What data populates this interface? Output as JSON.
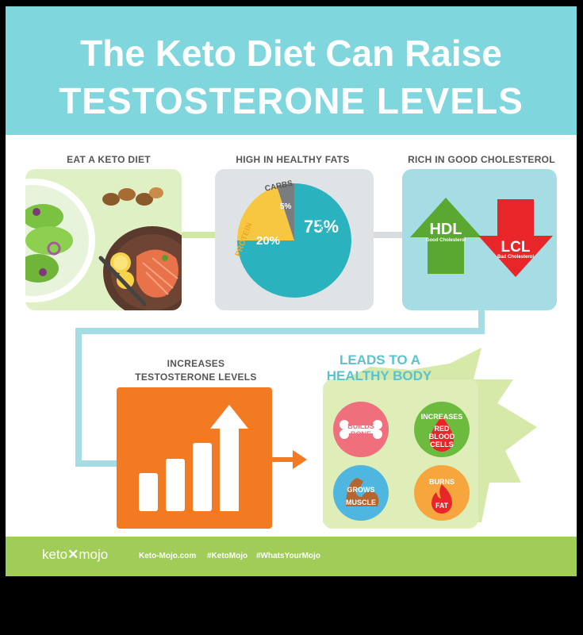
{
  "header": {
    "line1": "The Keto Diet Can Raise",
    "line2": "TESTOSTERONE LEVELS"
  },
  "sections": {
    "eat": "EAT A KETO DIET",
    "fats": "HIGH IN HEALTHY FATS",
    "cholesterol": "RICH IN GOOD CHOLESTEROL",
    "increases_line1": "INCREASES",
    "increases_line2": "TESTOSTERONE LEVELS",
    "leads_line1": "LEADS TO A",
    "leads_line2": "HEALTHY BODY"
  },
  "pie": {
    "slices": [
      {
        "label": "HEALTHY FATS",
        "value": 75,
        "text": "75%",
        "color": "#2ab3be"
      },
      {
        "label": "PROTEIN",
        "value": 20,
        "text": "20%",
        "color": "#f8c741"
      },
      {
        "label": "CARBS",
        "value": 5,
        "text": "5%",
        "color": "#7a7d80"
      }
    ]
  },
  "cholesterol": {
    "hdl": "HDL",
    "hdl_sub": "Good Cholesterol",
    "lcl": "LCL",
    "lcl_sub": "Bad Cholesterol"
  },
  "benefits": {
    "bone_1": "BUILDS",
    "bone_2": "BONE",
    "blood_1": "INCREASES",
    "blood_2": "RED",
    "blood_3": "BLOOD",
    "blood_4": "CELLS",
    "muscle_1": "GROWS",
    "muscle_2": "MUSCLE",
    "fat_1": "BURNS",
    "fat_2": "FAT"
  },
  "footer": {
    "logo_left": "keto",
    "logo_right": "mojo",
    "site": "Keto-Mojo.com",
    "tag1": "#KetoMojo",
    "tag2": "#WhatsYourMojo"
  },
  "colors": {
    "header": "#7fd6dc",
    "green": "#9fcd57",
    "orange": "#f17a22",
    "red": "#e8262a",
    "arrow_green": "#5aa832"
  }
}
